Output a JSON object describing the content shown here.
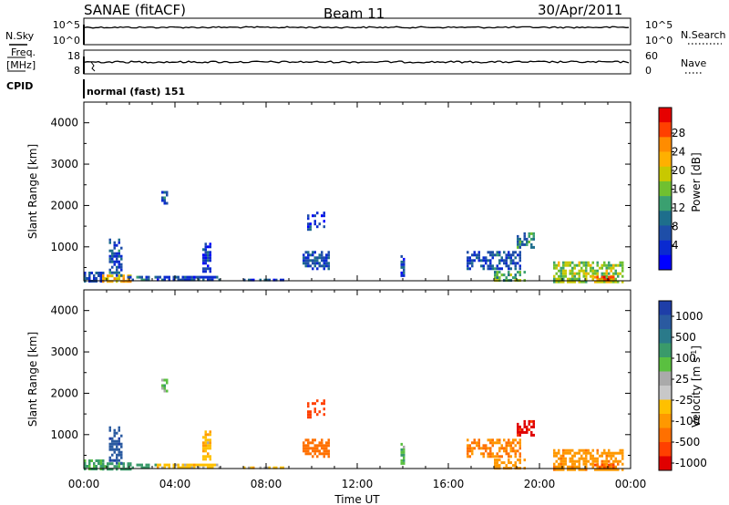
{
  "header": {
    "station": "SANAE (fitACF)",
    "beam": "Beam 11",
    "date": "30/Apr/2011"
  },
  "panel_nsky": {
    "left_label": "N.Sky",
    "right_label": "N.Search",
    "left_ticks": [
      "10^5",
      "10^0"
    ],
    "right_ticks": [
      "10^5",
      "10^0"
    ]
  },
  "panel_freq": {
    "left_label_1": "Freq.",
    "left_label_2": "[MHz]",
    "right_label": "Nave",
    "left_ticks": [
      "18",
      "8"
    ],
    "right_ticks": [
      "60",
      "0"
    ]
  },
  "cpid": {
    "label": "CPID",
    "text": "normal (fast) 151"
  },
  "time_axis": {
    "labels": [
      "00:00",
      "04:00",
      "08:00",
      "12:00",
      "16:00",
      "20:00",
      "00:00"
    ],
    "title": "Time UT"
  },
  "power_scale": {
    "label": "Power [dB]",
    "ticks": [
      "28",
      "24",
      "20",
      "16",
      "12",
      "8",
      "4"
    ],
    "colors": [
      "#e60000",
      "#ff4000",
      "#ff8c00",
      "#ffb000",
      "#c8c800",
      "#70c030",
      "#3aa070",
      "#1e6e8c",
      "#1e4ea8",
      "#0a2ad0",
      "#0000ff"
    ]
  },
  "velocity_scale": {
    "label": "Velocity [m s",
    "label_sup": "-1",
    "label_close": "]",
    "ticks": [
      "1000",
      "500",
      "100",
      "25",
      "-25",
      "-100",
      "-500",
      "-1000"
    ],
    "colors": [
      "#1e3ea8",
      "#2a5aa0",
      "#2a7a8a",
      "#3a9a6a",
      "#5ac040",
      "#aaaaaa",
      "#c8c8c8",
      "#ffc000",
      "#ff9800",
      "#ff7000",
      "#ff4000",
      "#e00000"
    ]
  },
  "range_axis": {
    "title": "Slant Range [km]",
    "ticks": [
      "4000",
      "3000",
      "2000",
      "1000"
    ]
  },
  "chart_data": [
    {
      "type": "heatmap",
      "name": "power",
      "x_unit": "hours UT",
      "xlim": [
        0,
        24
      ],
      "ylim": [
        180,
        4500
      ],
      "zlim": [
        0,
        30
      ],
      "blobs": [
        {
          "t0": 0.0,
          "t1": 0.9,
          "r0": 180,
          "r1": 400,
          "z": 6
        },
        {
          "t0": 0.8,
          "t1": 2.1,
          "r0": 180,
          "r1": 330,
          "z": 20
        },
        {
          "t0": 1.1,
          "t1": 1.7,
          "r0": 330,
          "r1": 1200,
          "z": 7
        },
        {
          "t0": 1.9,
          "t1": 3.2,
          "r0": 180,
          "r1": 300,
          "z": 9
        },
        {
          "t0": 3.4,
          "t1": 3.7,
          "r0": 2050,
          "r1": 2350,
          "z": 8
        },
        {
          "t0": 3.2,
          "t1": 6.0,
          "r0": 180,
          "r1": 300,
          "z": 6
        },
        {
          "t0": 5.2,
          "t1": 5.6,
          "r0": 400,
          "r1": 1100,
          "z": 5
        },
        {
          "t0": 7.0,
          "t1": 8.8,
          "r0": 180,
          "r1": 230,
          "z": 5
        },
        {
          "t0": 9.6,
          "t1": 10.8,
          "r0": 450,
          "r1": 900,
          "z": 7
        },
        {
          "t0": 9.8,
          "t1": 10.6,
          "r0": 1400,
          "r1": 1850,
          "z": 5
        },
        {
          "t0": 13.9,
          "t1": 14.1,
          "r0": 300,
          "r1": 800,
          "z": 6
        },
        {
          "t0": 16.8,
          "t1": 19.2,
          "r0": 500,
          "r1": 900,
          "z": 7
        },
        {
          "t0": 18.0,
          "t1": 19.4,
          "r0": 180,
          "r1": 420,
          "z": 14
        },
        {
          "t0": 19.0,
          "t1": 19.8,
          "r0": 1000,
          "r1": 1350,
          "z": 10
        },
        {
          "t0": 20.6,
          "t1": 23.7,
          "r0": 180,
          "r1": 650,
          "z": 16
        },
        {
          "t0": 22.4,
          "t1": 23.2,
          "r0": 180,
          "r1": 300,
          "z": 26
        }
      ]
    },
    {
      "type": "heatmap",
      "name": "velocity",
      "x_unit": "hours UT",
      "xlim": [
        0,
        24
      ],
      "ylim": [
        180,
        4500
      ],
      "zlim": [
        -1000,
        1000
      ],
      "blobs": [
        {
          "t0": 0.0,
          "t1": 0.9,
          "r0": 180,
          "r1": 400,
          "z": 120
        },
        {
          "t0": 0.8,
          "t1": 2.1,
          "r0": 180,
          "r1": 330,
          "z": 150
        },
        {
          "t0": 1.1,
          "t1": 1.7,
          "r0": 330,
          "r1": 1200,
          "z": 700
        },
        {
          "t0": 1.9,
          "t1": 3.2,
          "r0": 180,
          "r1": 300,
          "z": 200
        },
        {
          "t0": 3.4,
          "t1": 3.7,
          "r0": 2050,
          "r1": 2350,
          "z": 60
        },
        {
          "t0": 3.2,
          "t1": 6.0,
          "r0": 180,
          "r1": 300,
          "z": -60
        },
        {
          "t0": 5.2,
          "t1": 5.6,
          "r0": 400,
          "r1": 1100,
          "z": -80
        },
        {
          "t0": 7.0,
          "t1": 8.8,
          "r0": 180,
          "r1": 230,
          "z": -60
        },
        {
          "t0": 9.6,
          "t1": 10.8,
          "r0": 450,
          "r1": 900,
          "z": -400
        },
        {
          "t0": 9.8,
          "t1": 10.6,
          "r0": 1400,
          "r1": 1850,
          "z": -600
        },
        {
          "t0": 13.9,
          "t1": 14.1,
          "r0": 300,
          "r1": 800,
          "z": 80
        },
        {
          "t0": 16.8,
          "t1": 19.2,
          "r0": 500,
          "r1": 900,
          "z": -300
        },
        {
          "t0": 18.0,
          "t1": 19.4,
          "r0": 180,
          "r1": 420,
          "z": -200
        },
        {
          "t0": 19.0,
          "t1": 19.8,
          "r0": 1000,
          "r1": 1350,
          "z": -800
        },
        {
          "t0": 20.6,
          "t1": 23.7,
          "r0": 180,
          "r1": 650,
          "z": -250
        },
        {
          "t0": 22.4,
          "t1": 23.2,
          "r0": 180,
          "r1": 300,
          "z": -500
        }
      ]
    }
  ]
}
